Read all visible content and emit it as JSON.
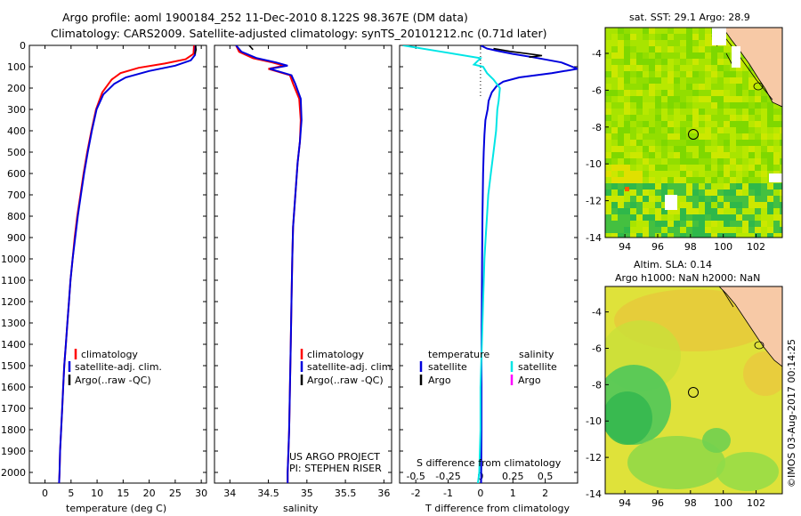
{
  "header": {
    "title_line1": "Argo profile: aoml 1900184_252 11-Dec-2010 8.122S 98.367E (DM data)",
    "title_line2": "Climatology: CARS2009. Satellite-adjusted climatology: synTS_20101212.nc (0.71d later)"
  },
  "colors": {
    "climatology": "#ff0000",
    "satellite": "#0000dd",
    "argo": "#000000",
    "sal_sat": "#00e5e5",
    "sal_argo": "#ff00ff"
  },
  "chart_data": [
    {
      "type": "line",
      "id": "temperature",
      "xlabel": "temperature (deg C)",
      "ylabel": "",
      "xlim": [
        -3,
        31
      ],
      "ylim": [
        2050,
        0
      ],
      "xticks": [
        0,
        5,
        10,
        15,
        20,
        25,
        30
      ],
      "yticks": [
        0,
        100,
        200,
        300,
        400,
        500,
        600,
        700,
        800,
        900,
        1000,
        1100,
        1200,
        1300,
        1400,
        1500,
        1600,
        1700,
        1800,
        1900,
        2000
      ],
      "legend": [
        "climatology",
        "satellite-adj. clim.",
        "Argo(..raw -QC)"
      ],
      "series": [
        {
          "name": "climatology",
          "x": [
            28.6,
            28.5,
            27.0,
            23.0,
            18.0,
            14.5,
            12.8,
            11.0,
            9.8,
            8.9,
            8.1,
            7.4,
            6.8,
            6.2,
            5.7,
            5.3,
            4.9,
            4.6,
            4.3,
            4.0,
            3.7,
            3.5,
            3.3,
            3.1,
            2.9,
            2.8,
            2.7
          ],
          "y": [
            0,
            40,
            65,
            85,
            105,
            130,
            160,
            220,
            300,
            400,
            500,
            600,
            700,
            800,
            900,
            1000,
            1100,
            1200,
            1300,
            1400,
            1500,
            1600,
            1700,
            1800,
            1900,
            2000,
            2050
          ]
        },
        {
          "name": "satellite-adj. clim.",
          "x": [
            28.9,
            28.8,
            28.0,
            25.0,
            20.0,
            15.5,
            13.3,
            11.2,
            9.9,
            9.0,
            8.2,
            7.5,
            6.9,
            6.3,
            5.8,
            5.3,
            4.9,
            4.6,
            4.3,
            4.0,
            3.7,
            3.5,
            3.3,
            3.1,
            2.9,
            2.8,
            2.7
          ],
          "y": [
            0,
            45,
            70,
            95,
            120,
            150,
            180,
            230,
            300,
            400,
            500,
            600,
            700,
            800,
            900,
            1000,
            1100,
            1200,
            1300,
            1400,
            1500,
            1600,
            1700,
            1800,
            1900,
            2000,
            2050
          ]
        },
        {
          "name": "Argo(..raw -QC)",
          "x": [
            28.9,
            29.0,
            28.8
          ],
          "y": [
            0,
            20,
            40
          ]
        }
      ]
    },
    {
      "type": "line",
      "id": "salinity",
      "xlabel": "salinity",
      "ylabel": "",
      "xlim": [
        33.8,
        36.1
      ],
      "ylim": [
        2050,
        0
      ],
      "xticks": [
        34,
        34.5,
        35,
        35.5,
        36
      ],
      "legend": [
        "climatology",
        "satellite-adj. clim.",
        "Argo(..raw -QC)"
      ],
      "annotation": [
        "US ARGO PROJECT",
        "PI: STEPHEN RISER"
      ],
      "series": [
        {
          "name": "climatology",
          "x": [
            34.08,
            34.12,
            34.3,
            34.55,
            34.7,
            34.5,
            34.78,
            34.82,
            34.9,
            34.92,
            34.91,
            34.88,
            34.86,
            34.84,
            34.82,
            34.81,
            34.8,
            34.79,
            34.78,
            34.77,
            34.76,
            34.75,
            34.75
          ],
          "y": [
            0,
            30,
            60,
            80,
            95,
            110,
            140,
            180,
            250,
            350,
            450,
            550,
            650,
            750,
            850,
            1000,
            1200,
            1400,
            1600,
            1800,
            1900,
            2000,
            2050
          ]
        },
        {
          "name": "satellite-adj. clim.",
          "x": [
            34.08,
            34.15,
            34.35,
            34.6,
            34.75,
            34.52,
            34.8,
            34.85,
            34.92,
            34.93,
            34.91,
            34.88,
            34.86,
            34.84,
            34.82,
            34.81,
            34.8,
            34.79,
            34.78,
            34.77,
            34.76,
            34.75,
            34.75
          ],
          "y": [
            0,
            30,
            60,
            80,
            95,
            110,
            140,
            180,
            250,
            350,
            450,
            550,
            650,
            750,
            850,
            1000,
            1200,
            1400,
            1600,
            1800,
            1900,
            2000,
            2050
          ]
        },
        {
          "name": "Argo(..raw -QC)",
          "x": [
            34.25,
            34.3
          ],
          "y": [
            0,
            20
          ]
        }
      ]
    },
    {
      "type": "line",
      "id": "difference",
      "xlabel": "T difference from climatology",
      "xlabel2": "S difference from climatology",
      "xlim": [
        -2.5,
        3
      ],
      "ylim": [
        2050,
        0
      ],
      "xticks": [
        -2,
        -1,
        0,
        1,
        2
      ],
      "xticks_s": [
        -0.5,
        -0.25,
        0,
        0.25,
        0.5
      ],
      "xticklabels_s": [
        "-0.5",
        "-0.25",
        "0",
        "0.25",
        "0.5"
      ],
      "legend_temperature": [
        "temperature",
        "satellite",
        "Argo"
      ],
      "legend_salinity": [
        "salinity",
        "satellite",
        "Argo"
      ],
      "series": [
        {
          "name": "T satellite",
          "x": [
            0.0,
            0.2,
            0.5,
            1.0,
            1.6,
            2.5,
            3.0,
            2.2,
            1.2,
            0.7,
            0.5,
            0.35,
            0.25,
            0.22,
            0.15,
            0.12,
            0.1,
            0.08,
            0.06,
            0.05,
            0.04,
            0.03,
            0.03,
            0.03,
            0.02
          ],
          "y": [
            0,
            15,
            25,
            40,
            55,
            80,
            110,
            130,
            150,
            170,
            190,
            220,
            260,
            300,
            350,
            420,
            500,
            600,
            800,
            1000,
            1200,
            1400,
            1600,
            1800,
            2050
          ]
        },
        {
          "name": "T Argo",
          "x": [
            0.4,
            0.9,
            1.4,
            1.9,
            1.5
          ],
          "y": [
            15,
            28,
            38,
            48,
            55
          ]
        },
        {
          "name": "S satellite",
          "x": [
            -0.6,
            -0.3,
            0.0,
            -0.05,
            0.02,
            0.05,
            0.1,
            0.15,
            0.14,
            0.13,
            0.12,
            0.1,
            0.08,
            0.06,
            0.05,
            0.04,
            0.03,
            0.02,
            0.01,
            0.0,
            0.0,
            -0.01,
            -0.02
          ],
          "y": [
            0,
            30,
            60,
            90,
            100,
            130,
            160,
            200,
            260,
            300,
            400,
            500,
            600,
            700,
            800,
            900,
            1000,
            1200,
            1400,
            1600,
            1800,
            2000,
            2050
          ]
        }
      ]
    }
  ],
  "maps": {
    "sst": {
      "title": "sat. SST: 29.1  Argo: 28.9",
      "xticks": [
        "94",
        "96",
        "98",
        "100",
        "102"
      ],
      "yticks": [
        "-4",
        "-6",
        "-8",
        "-10",
        "-12",
        "-14"
      ]
    },
    "sla": {
      "title1": "Altim. SLA: 0.14",
      "title2": "Argo h1000: NaN h2000: NaN",
      "xticks": [
        "94",
        "96",
        "98",
        "100",
        "102"
      ],
      "yticks": [
        "-4",
        "-6",
        "-8",
        "-10",
        "-12",
        "-14"
      ]
    }
  },
  "footer": {
    "credit": "©IMOS 03-Aug-2017 00:14:25"
  }
}
